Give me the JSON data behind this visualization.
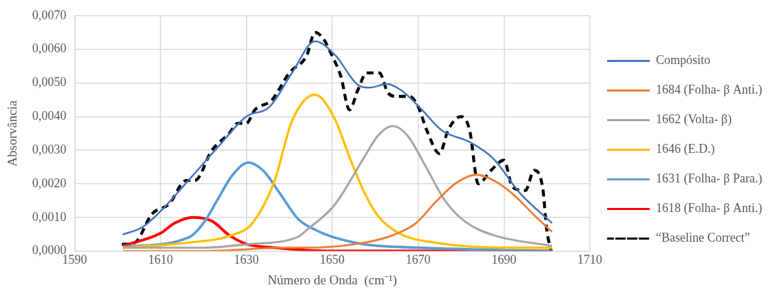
{
  "chart_data": {
    "type": "line",
    "xlabel": "Número de Onda  (cm⁻¹)",
    "ylabel": "Absorvância",
    "xlim": [
      1590,
      1710
    ],
    "xticks": [
      1590,
      1610,
      1630,
      1650,
      1670,
      1690,
      1710
    ],
    "ylim": [
      0,
      0.007
    ],
    "yticks": [
      {
        "value": 0,
        "label": "0,0000"
      },
      {
        "value": 0.001,
        "label": "0,0010"
      },
      {
        "value": 0.002,
        "label": "0,0020"
      },
      {
        "value": 0.003,
        "label": "0,0030"
      },
      {
        "value": 0.004,
        "label": "0,0040"
      },
      {
        "value": 0.005,
        "label": "0,0050"
      },
      {
        "value": 0.006,
        "label": "0,0060"
      },
      {
        "value": 0.007,
        "label": "0,0070"
      }
    ],
    "grid": true,
    "legend": "right",
    "marker": "none",
    "series": [
      {
        "name": "Compósito",
        "color": "#4472c4",
        "line_style": "solid",
        "x": [
          1601.2,
          1605.9,
          1609.9,
          1616.5,
          1623.3,
          1630,
          1635.4,
          1640.6,
          1646,
          1650.6,
          1656.1,
          1658.7,
          1662.7,
          1666.1,
          1670.7,
          1675.5,
          1682.2,
          1687.6,
          1693.6,
          1701.2
        ],
        "values": [
          0.00049,
          0.00072,
          0.00117,
          0.0021,
          0.00308,
          0.004,
          0.00429,
          0.00529,
          0.00624,
          0.00584,
          0.00493,
          0.00486,
          0.00497,
          0.00478,
          0.00423,
          0.00359,
          0.00323,
          0.00274,
          0.00174,
          0.00083
        ]
      },
      {
        "name": "1684 (Folha- β Anti.)",
        "color": "#ed7d31",
        "line_style": "solid",
        "x": [
          1601.2,
          1620,
          1640,
          1644,
          1657.5,
          1664.1,
          1669.5,
          1674.1,
          1678.8,
          1683.6,
          1687.6,
          1692.2,
          1696.8,
          1701.2
        ],
        "values": [
          0,
          0,
          0.0001,
          0.0001,
          0.00025,
          0.00047,
          0.00083,
          0.00146,
          0.00202,
          0.00227,
          0.0021,
          0.00168,
          0.0011,
          0.00057
        ]
      },
      {
        "name": "1662 (Volta- β)",
        "color": "#a5a5a5",
        "line_style": "solid",
        "x": [
          1601.2,
          1620,
          1630,
          1642,
          1644,
          1650.6,
          1657.5,
          1660.7,
          1664.1,
          1667.5,
          1672.1,
          1676.1,
          1680.8,
          1687.6,
          1701.2
        ],
        "values": [
          0.0001,
          0.0001,
          0.0002,
          0.00042,
          0.00062,
          0.00138,
          0.0028,
          0.00344,
          0.00372,
          0.00344,
          0.00244,
          0.00153,
          0.00089,
          0.00047,
          0.00015
        ]
      },
      {
        "name": "1646 (E.D.)",
        "color": "#ffc000",
        "line_style": "solid",
        "x": [
          1601.2,
          1616.5,
          1626.6,
          1631.4,
          1636.6,
          1640.6,
          1646,
          1650.6,
          1654,
          1657.5,
          1660.7,
          1665.5,
          1674,
          1690.8,
          1701.2
        ],
        "values": [
          0.0001,
          0.00025,
          0.00047,
          0.00083,
          0.0021,
          0.00386,
          0.00465,
          0.00393,
          0.0028,
          0.00174,
          0.00104,
          0.00053,
          0.00025,
          0.0001,
          0.0001
        ]
      },
      {
        "name": "1631 (Folha- β Para.)",
        "color": "#5b9bd5",
        "line_style": "solid",
        "x": [
          1601.2,
          1616.5,
          1620,
          1623.3,
          1626.6,
          1630.5,
          1634,
          1638,
          1642,
          1646.6,
          1650.6,
          1657.5,
          1670,
          1701.2
        ],
        "values": [
          0.00012,
          0.0004,
          0.00083,
          0.00153,
          0.00223,
          0.00263,
          0.00238,
          0.00168,
          0.00096,
          0.0006,
          0.0004,
          0.0002,
          0.0001,
          0
        ]
      },
      {
        "name": "1618 (Folha- β Anti.)",
        "color": "#ff0000",
        "line_style": "solid",
        "x": [
          1601.2,
          1610,
          1613.3,
          1617.5,
          1622,
          1626,
          1630,
          1636.6,
          1650,
          1701.2
        ],
        "values": [
          0.00015,
          0.00053,
          0.00083,
          0.001,
          0.00089,
          0.00047,
          0.00021,
          0.0001,
          0,
          0
        ]
      },
      {
        "name": "“Baseline Correct”",
        "color": "#000000",
        "line_style": "dashed",
        "x": [
          1601,
          1604,
          1608,
          1612,
          1616,
          1618,
          1622,
          1626,
          1628,
          1630,
          1632,
          1636,
          1640,
          1644,
          1646,
          1648,
          1650,
          1652,
          1654,
          1656,
          1658,
          1661,
          1663,
          1665,
          1668,
          1670,
          1672,
          1675,
          1677,
          1680,
          1682,
          1684,
          1687,
          1690,
          1692,
          1695,
          1697,
          1699,
          1700,
          1701
        ],
        "values": [
          0.0002,
          0.00025,
          0.0011,
          0.0014,
          0.0021,
          0.0021,
          0.003,
          0.0035,
          0.0038,
          0.0038,
          0.0042,
          0.0045,
          0.0053,
          0.0058,
          0.0065,
          0.0063,
          0.0058,
          0.0052,
          0.0042,
          0.0048,
          0.0053,
          0.0053,
          0.0047,
          0.0046,
          0.0046,
          0.0043,
          0.0036,
          0.0029,
          0.0036,
          0.004,
          0.0036,
          0.002,
          0.0024,
          0.0027,
          0.0019,
          0.0018,
          0.0024,
          0.0019,
          0.0006,
          0
        ]
      }
    ]
  }
}
